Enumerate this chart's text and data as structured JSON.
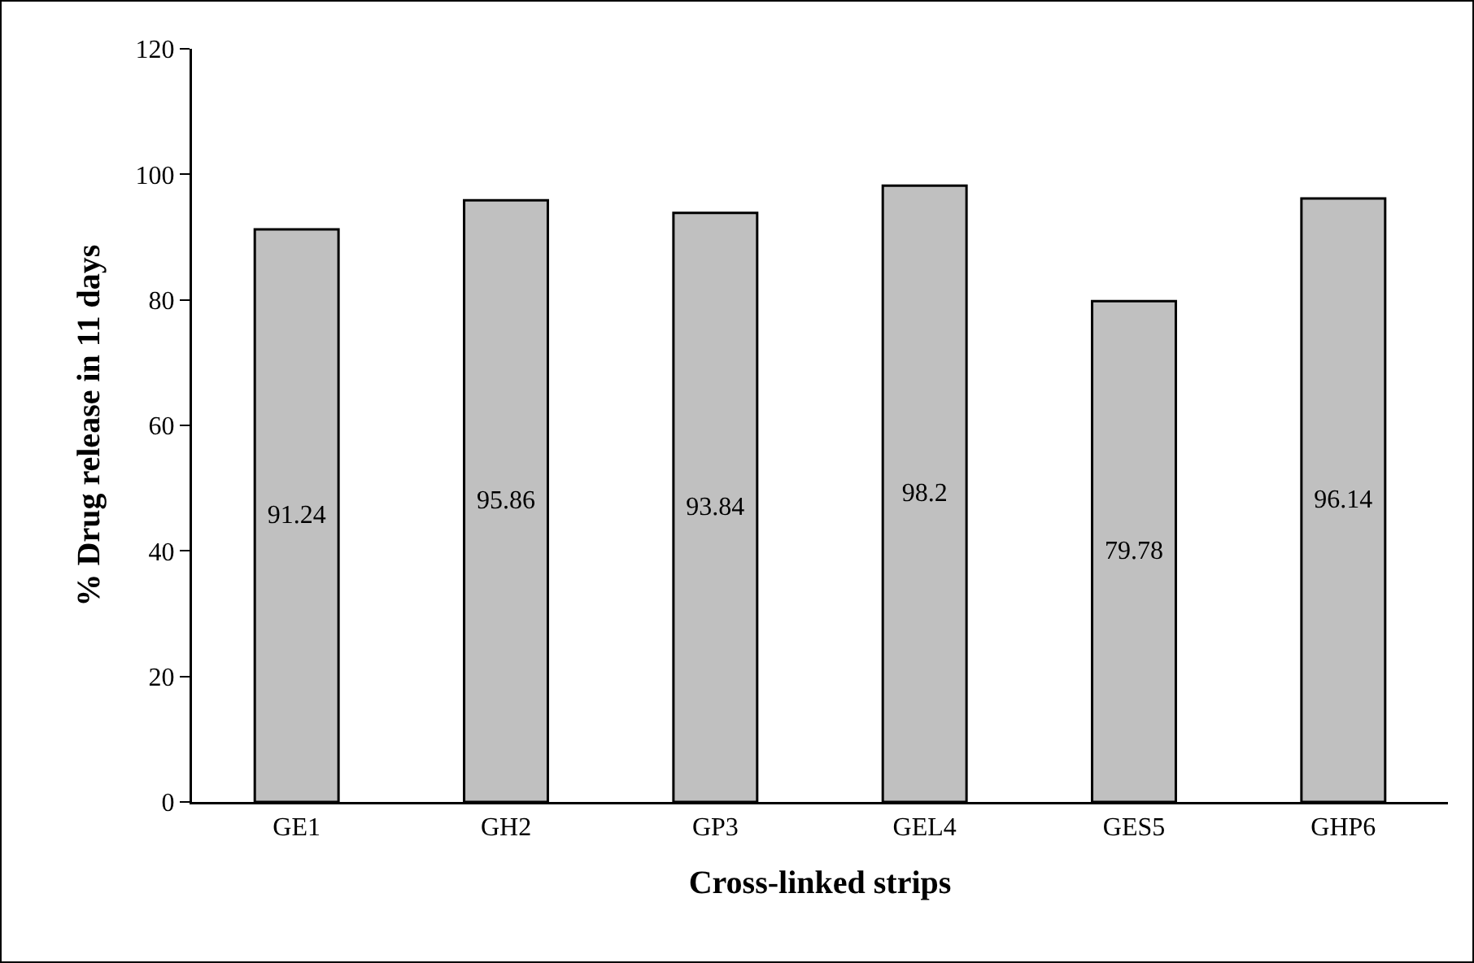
{
  "chart_data": {
    "type": "bar",
    "xlabel": "Cross-linked strips",
    "ylabel": "% Drug release in 11 days",
    "categories": [
      "GE1",
      "GH2",
      "GP3",
      "GEL4",
      "GES5",
      "GHP6"
    ],
    "values": [
      91.24,
      95.86,
      93.84,
      98.2,
      79.78,
      96.14
    ],
    "color": "#c0c0c0",
    "ylim": [
      0,
      120
    ],
    "yticks": [
      0,
      20,
      40,
      60,
      80,
      100,
      120
    ],
    "grid": false,
    "data_labels": true
  }
}
